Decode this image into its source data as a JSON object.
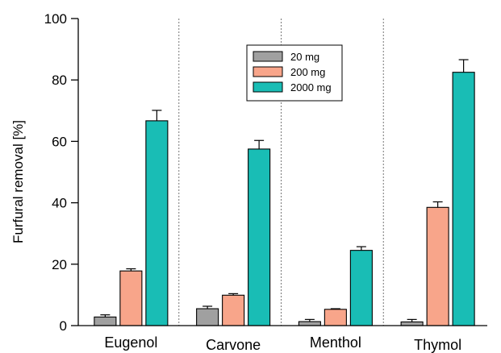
{
  "chart_data": {
    "type": "bar",
    "title": "",
    "xlabel": "",
    "ylabel": "Furfural removal [%]",
    "ylim": [
      0,
      100
    ],
    "yticks": [
      0,
      20,
      40,
      60,
      80,
      100
    ],
    "categories": [
      "Eugenol",
      "Carvone",
      "Menthol",
      "Thymol"
    ],
    "series": [
      {
        "name": "20 mg",
        "color": "#a0a0a0",
        "values": [
          2.8,
          5.5,
          1.3,
          1.2
        ],
        "errors": [
          0.7,
          0.8,
          0.7,
          0.8
        ]
      },
      {
        "name": "200 mg",
        "color": "#f8a58a",
        "values": [
          17.8,
          9.9,
          5.3,
          38.5
        ],
        "errors": [
          0.7,
          0.5,
          0.2,
          1.8
        ]
      },
      {
        "name": "2000 mg",
        "color": "#19bdb5",
        "values": [
          66.7,
          57.5,
          24.5,
          82.5
        ],
        "errors": [
          3.4,
          2.8,
          1.2,
          4.1
        ]
      }
    ],
    "grid": false,
    "category_separators": "dashed vertical lines between groups",
    "legend_placement": "top-center"
  }
}
